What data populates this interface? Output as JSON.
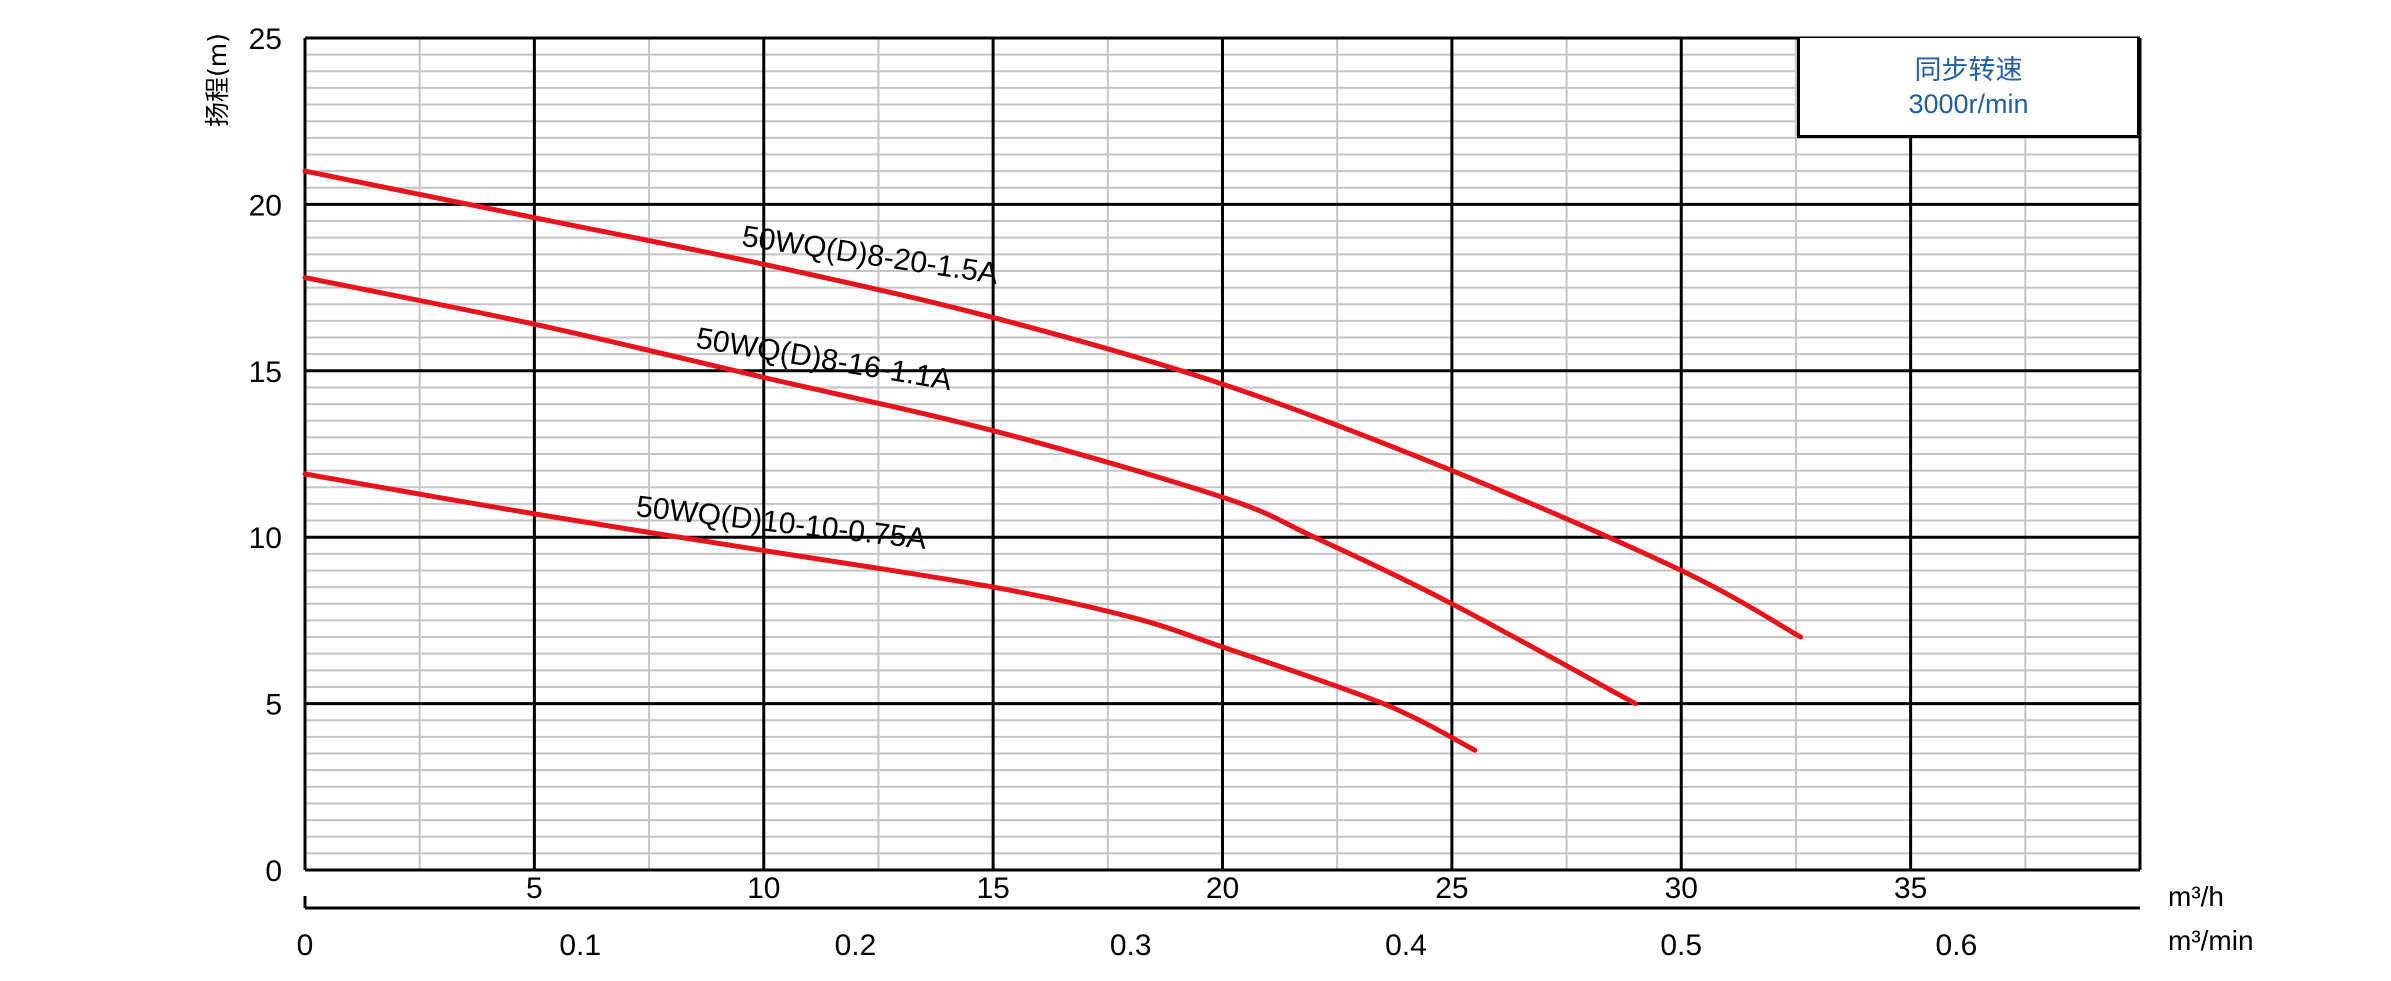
{
  "chart_data": {
    "type": "line",
    "ylabel": "扬程(m)",
    "ylim": [
      0,
      25
    ],
    "y_ticks": [
      "0",
      "5",
      "10",
      "15",
      "20",
      "25"
    ],
    "x_axes": [
      {
        "unit": "m³/h",
        "lim": [
          0,
          40
        ],
        "ticks": [
          "5",
          "10",
          "15",
          "20",
          "25",
          "30",
          "35"
        ]
      },
      {
        "unit": "m³/min",
        "lim": [
          0,
          0.6667
        ],
        "ticks": [
          "0",
          "0.1",
          "0.2",
          "0.3",
          "0.4",
          "0.5",
          "0.6"
        ]
      }
    ],
    "grid": true,
    "legend_box": {
      "line1": "同步转速",
      "line2": "3000r/min",
      "color": "#1f5fa0"
    },
    "curve_color": "#e8141b",
    "series": [
      {
        "name": "50WQ(D)8-20-1.5A",
        "x": [
          0,
          5,
          10,
          15,
          20,
          25,
          30,
          32.6
        ],
        "y": [
          21,
          19.6,
          18.2,
          16.6,
          14.6,
          12,
          9,
          7
        ]
      },
      {
        "name": "50WQ(D)8-16-1.1A",
        "x": [
          0,
          5,
          10,
          15,
          20,
          22,
          25,
          29
        ],
        "y": [
          17.8,
          16.4,
          14.8,
          13.2,
          11.2,
          10,
          8,
          5
        ]
      },
      {
        "name": "50WQ(D)10-10-0.75A",
        "x": [
          0,
          5,
          10,
          15,
          18,
          20,
          23.5,
          25.5
        ],
        "y": [
          11.9,
          10.7,
          9.6,
          8.5,
          7.6,
          6.7,
          5,
          3.6
        ]
      }
    ]
  }
}
